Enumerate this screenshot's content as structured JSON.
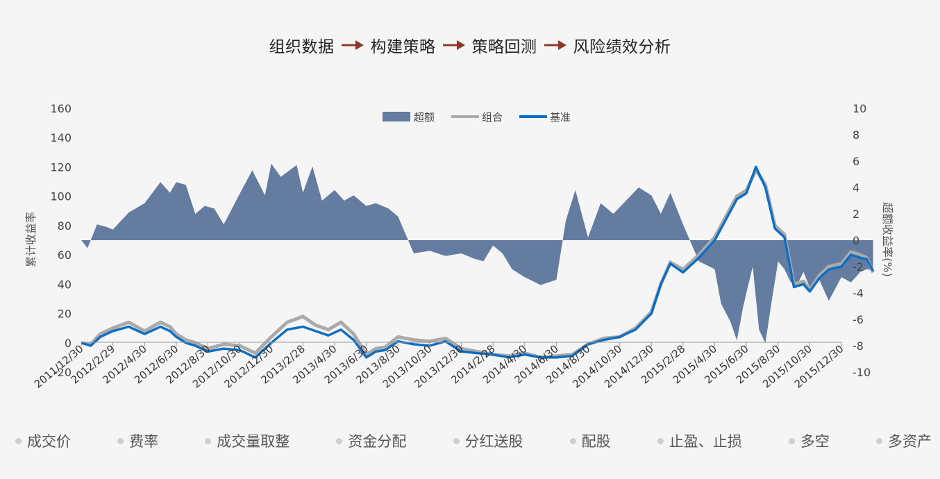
{
  "workflow": {
    "steps": [
      "组织数据",
      "构建策略",
      "策略回测",
      "风险绩效分析"
    ],
    "arrow_color": "#8b3a2a"
  },
  "chart_data": {
    "type": "line",
    "title": "",
    "ylabel_left": "累计收益率",
    "ylabel_right": "超额收益率(%)",
    "left_axis": {
      "ylim": [
        -20,
        160
      ],
      "ticks": [
        -20,
        0,
        20,
        40,
        60,
        80,
        100,
        120,
        140,
        160
      ]
    },
    "right_axis": {
      "ylim": [
        -10,
        10
      ],
      "ticks": [
        -10,
        -8,
        -6,
        -4,
        -2,
        0,
        2,
        4,
        6,
        8,
        10
      ]
    },
    "x_ticks": [
      "2011/12/30",
      "2012/2/29",
      "2012/4/30",
      "2012/6/30",
      "2012/8/30",
      "2012/10/30",
      "2012/12/30",
      "2013/2/28",
      "2013/4/30",
      "2013/6/30",
      "2013/8/30",
      "2013/10/30",
      "2013/12/30",
      "2014/2/28",
      "2014/4/30",
      "2014/6/30",
      "2014/8/30",
      "2014/10/30",
      "2014/12/30",
      "2015/2/28",
      "2015/4/30",
      "2015/6/30",
      "2015/8/30",
      "2015/10/30",
      "2015/12/30"
    ],
    "grid": false,
    "legend_position": "top-center",
    "series": [
      {
        "name": "超额",
        "kind": "area",
        "axis": "right",
        "color": "#637c9f",
        "x": [
          0,
          0.2,
          0.5,
          0.8,
          1.0,
          1.5,
          2.0,
          2.5,
          2.8,
          3.0,
          3.3,
          3.6,
          3.9,
          4.2,
          4.5,
          5.0,
          5.4,
          5.8,
          6.0,
          6.3,
          6.8,
          7.0,
          7.3,
          7.6,
          8.0,
          8.3,
          8.6,
          9.0,
          9.3,
          9.7,
          10.0,
          10.5,
          11.0,
          11.5,
          12.0,
          12.4,
          12.7,
          13.0,
          13.3,
          13.6,
          14.0,
          14.5,
          15.0,
          15.3,
          15.6,
          16.0,
          16.4,
          16.8,
          17.2,
          17.6,
          18.0,
          18.3,
          18.6,
          19.0,
          19.5,
          20.0,
          20.2,
          20.5,
          20.7,
          20.9,
          21.0,
          21.2,
          21.4,
          21.6,
          21.8,
          22.0,
          22.2,
          22.4,
          22.6,
          22.8,
          23.0,
          23.3,
          23.6,
          24.0,
          24.3,
          24.6,
          24.8,
          25.0
        ],
        "values": [
          0,
          -0.6,
          1.2,
          1.0,
          0.8,
          2.1,
          2.8,
          4.4,
          3.6,
          4.4,
          4.2,
          2.0,
          2.6,
          2.4,
          1.2,
          3.5,
          5.3,
          3.4,
          5.8,
          4.8,
          5.7,
          3.6,
          5.6,
          3.0,
          3.8,
          3.0,
          3.4,
          2.6,
          2.8,
          2.4,
          1.8,
          -1.0,
          -0.8,
          -1.2,
          -1.0,
          -1.4,
          -1.6,
          -0.4,
          -1.0,
          -2.2,
          -2.8,
          -3.4,
          -3.0,
          1.5,
          3.8,
          0.2,
          2.8,
          2.0,
          3.0,
          4.0,
          3.4,
          2.0,
          3.6,
          1.2,
          -1.6,
          -2.2,
          -4.8,
          -6.2,
          -7.6,
          -5.0,
          -4.0,
          -2.0,
          -6.8,
          -7.8,
          -4.6,
          -1.6,
          -2.2,
          -3.2,
          -3.4,
          -2.4,
          -3.6,
          -3.0,
          -4.6,
          -2.8,
          -3.2,
          -2.4,
          -2.2,
          -2.3
        ]
      },
      {
        "name": "组合",
        "kind": "line",
        "axis": "left",
        "color": "#aaaaaa",
        "x": [
          0,
          0.3,
          0.6,
          1.0,
          1.5,
          2.0,
          2.5,
          2.8,
          3.0,
          3.3,
          3.6,
          4.0,
          4.5,
          5.0,
          5.5,
          6.0,
          6.5,
          7.0,
          7.4,
          7.8,
          8.2,
          8.6,
          9.0,
          9.3,
          9.6,
          10.0,
          10.5,
          11.0,
          11.5,
          12.0,
          12.5,
          13.0,
          13.5,
          14.0,
          14.5,
          15.0,
          15.5,
          16.0,
          16.5,
          17.0,
          17.5,
          18.0,
          18.3,
          18.6,
          19.0,
          19.5,
          20.0,
          20.4,
          20.7,
          21.0,
          21.3,
          21.6,
          21.9,
          22.2,
          22.5,
          22.8,
          23.0,
          23.3,
          23.6,
          24.0,
          24.3,
          24.6,
          24.8,
          25.0
        ],
        "values": [
          0,
          -1,
          6,
          10,
          14,
          8,
          14,
          11,
          6,
          2,
          0,
          -4,
          -1,
          -2,
          -7,
          4,
          14,
          18,
          12,
          9,
          14,
          6,
          -8,
          -4,
          -3,
          4,
          2,
          1,
          3,
          -4,
          -6,
          -8,
          -9,
          -7,
          -10,
          -9,
          -8,
          -1,
          3,
          4,
          10,
          21,
          40,
          55,
          50,
          60,
          72,
          88,
          100,
          104,
          118,
          108,
          80,
          74,
          40,
          42,
          36,
          46,
          52,
          54,
          62,
          60,
          58,
          48
        ]
      },
      {
        "name": "基准",
        "kind": "line",
        "axis": "left",
        "color": "#0e6ec4",
        "x": [
          0,
          0.3,
          0.6,
          1.0,
          1.5,
          2.0,
          2.5,
          2.8,
          3.0,
          3.3,
          3.6,
          4.0,
          4.5,
          5.0,
          5.5,
          6.0,
          6.5,
          7.0,
          7.4,
          7.8,
          8.2,
          8.6,
          9.0,
          9.3,
          9.6,
          10.0,
          10.5,
          11.0,
          11.5,
          12.0,
          12.5,
          13.0,
          13.5,
          14.0,
          14.5,
          15.0,
          15.5,
          16.0,
          16.5,
          17.0,
          17.5,
          18.0,
          18.3,
          18.6,
          19.0,
          19.5,
          20.0,
          20.4,
          20.7,
          21.0,
          21.3,
          21.6,
          21.9,
          22.2,
          22.5,
          22.8,
          23.0,
          23.3,
          23.6,
          24.0,
          24.3,
          24.6,
          24.8,
          25.0
        ],
        "values": [
          0,
          -2,
          4,
          8,
          11,
          6,
          11,
          8,
          4,
          0,
          -2,
          -6,
          -4,
          -5,
          -10,
          0,
          9,
          11,
          8,
          5,
          9,
          2,
          -10,
          -6,
          -5,
          1,
          -1,
          -2,
          1,
          -6,
          -7,
          -8,
          -10,
          -8,
          -10,
          -10,
          -9,
          -1,
          2,
          4,
          9,
          20,
          40,
          54,
          48,
          58,
          70,
          86,
          98,
          102,
          120,
          106,
          78,
          72,
          38,
          40,
          35,
          44,
          50,
          52,
          60,
          58,
          57,
          49
        ]
      }
    ],
    "legend": [
      "超额",
      "组合",
      "基准"
    ]
  },
  "features": [
    "成交价",
    "费率",
    "成交量取整",
    "资金分配",
    "分红送股",
    "配股",
    "止盈、止损",
    "多空",
    "多资产"
  ]
}
